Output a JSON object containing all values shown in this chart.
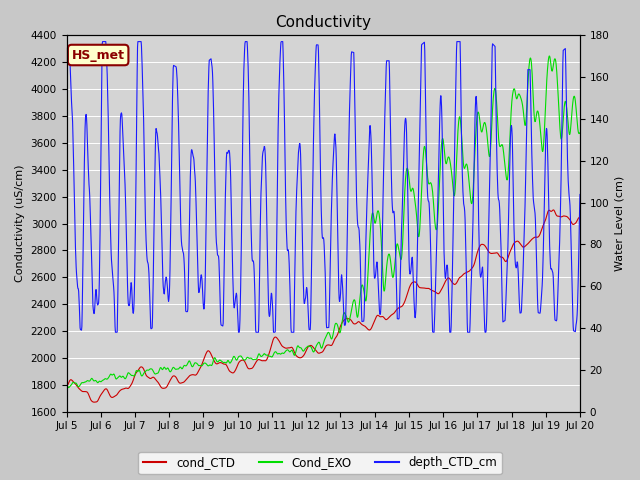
{
  "title": "Conductivity",
  "ylabel_left": "Conductivity (uS/cm)",
  "ylabel_right": "Water Level (cm)",
  "ylim_left": [
    1600,
    4400
  ],
  "ylim_right": [
    0,
    180
  ],
  "plot_bg_color": "#d4d4d4",
  "fig_bg_color": "#c8c8c8",
  "annotation_text": "HS_met",
  "annotation_box_color": "#ffffcc",
  "annotation_border_color": "#8b0000",
  "annotation_text_color": "#8b0000",
  "legend_labels": [
    "cond_CTD",
    "Cond_EXO",
    "depth_CTD_cm"
  ],
  "line_colors": [
    "#cc0000",
    "#00dd00",
    "#1a1aff"
  ],
  "xtick_labels": [
    "Jul 5",
    "Jul 6",
    "Jul 7",
    "Jul 8",
    "Jul 9",
    "Jul 10",
    "Jul 11",
    "Jul 12",
    "Jul 13",
    "Jul 14",
    "Jul 15",
    "Jul 16",
    "Jul 17",
    "Jul 18",
    "Jul 19",
    "Jul 20"
  ],
  "xtick_positions": [
    0,
    24,
    48,
    72,
    96,
    120,
    144,
    168,
    192,
    216,
    240,
    264,
    288,
    312,
    336,
    360
  ],
  "yticks_left": [
    1600,
    1800,
    2000,
    2200,
    2400,
    2600,
    2800,
    3000,
    3200,
    3400,
    3600,
    3800,
    4000,
    4200,
    4400
  ],
  "yticks_right": [
    0,
    20,
    40,
    60,
    80,
    100,
    120,
    140,
    160,
    180
  ],
  "n_points": 1440
}
